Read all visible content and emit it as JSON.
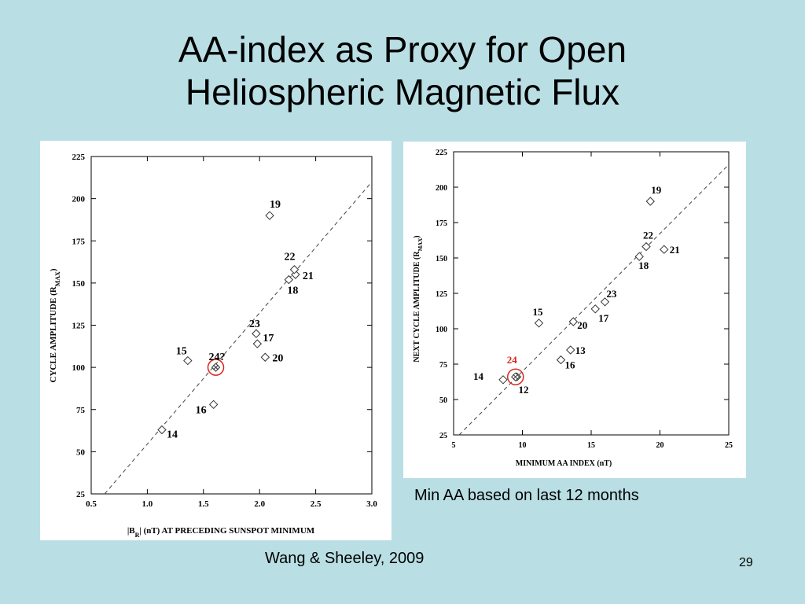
{
  "slide": {
    "title_line1": "AA-index as Proxy for Open",
    "title_line2": "Heliospheric Magnetic Flux",
    "right_caption": "Min AA based on last 12 months",
    "citation": "Wang & Sheeley, 2009",
    "slide_number": "29"
  },
  "colors": {
    "background": "#b9dfe5",
    "highlight": "#d9261c"
  },
  "chart_data": [
    {
      "type": "scatter",
      "xlabel_parts": [
        "|B",
        "R",
        "|  (nT)  AT  PRECEDING  SUNSPOT  MINIMUM"
      ],
      "ylabel_parts": [
        "CYCLE  AMPLITUDE  (R",
        "MAX",
        ")"
      ],
      "xlim": [
        0.5,
        3.0
      ],
      "ylim": [
        25,
        225
      ],
      "xticks": [
        "0.5",
        "1.0",
        "1.5",
        "2.0",
        "2.5",
        "3.0"
      ],
      "xtick_values": [
        0.5,
        1.0,
        1.5,
        2.0,
        2.5,
        3.0
      ],
      "yticks": [
        "25",
        "50",
        "75",
        "100",
        "125",
        "150",
        "175",
        "200",
        "225"
      ],
      "ytick_values": [
        25,
        50,
        75,
        100,
        125,
        150,
        175,
        200,
        225
      ],
      "fit_line": [
        [
          0.62,
          25
        ],
        [
          3.0,
          210
        ]
      ],
      "points": [
        {
          "label": "14",
          "x": 1.13,
          "y": 63
        },
        {
          "label": "15",
          "x": 1.36,
          "y": 104
        },
        {
          "label": "16",
          "x": 1.59,
          "y": 78
        },
        {
          "label": "17",
          "x": 1.98,
          "y": 114
        },
        {
          "label": "18",
          "x": 2.26,
          "y": 152
        },
        {
          "label": "19",
          "x": 2.09,
          "y": 190
        },
        {
          "label": "20",
          "x": 2.05,
          "y": 106
        },
        {
          "label": "21",
          "x": 2.32,
          "y": 155
        },
        {
          "label": "22",
          "x": 2.31,
          "y": 158
        },
        {
          "label": "23",
          "x": 1.97,
          "y": 120
        },
        {
          "label": "24?",
          "x": 1.61,
          "y": 100,
          "highlight": true
        }
      ]
    },
    {
      "type": "scatter",
      "xlabel": "MINIMUM   AA   INDEX   (nT)",
      "ylabel_parts": [
        "NEXT  CYCLE  AMPLITUDE  (R",
        "MAX",
        ")"
      ],
      "xlim": [
        5,
        25
      ],
      "ylim": [
        25,
        225
      ],
      "xticks": [
        "5",
        "10",
        "15",
        "20",
        "25"
      ],
      "xtick_values": [
        5,
        10,
        15,
        20,
        25
      ],
      "yticks": [
        "25",
        "50",
        "75",
        "100",
        "125",
        "150",
        "175",
        "200",
        "225"
      ],
      "ytick_values": [
        25,
        50,
        75,
        100,
        125,
        150,
        175,
        200,
        225
      ],
      "fit_line": [
        [
          5.4,
          25
        ],
        [
          24.9,
          215
        ]
      ],
      "points": [
        {
          "label": "12",
          "x": 9.6,
          "y": 66
        },
        {
          "label": "13",
          "x": 13.5,
          "y": 85
        },
        {
          "label": "14",
          "x": 8.6,
          "y": 64
        },
        {
          "label": "15",
          "x": 11.2,
          "y": 104
        },
        {
          "label": "16",
          "x": 12.8,
          "y": 78
        },
        {
          "label": "17",
          "x": 15.3,
          "y": 114
        },
        {
          "label": "18",
          "x": 18.5,
          "y": 151
        },
        {
          "label": "19",
          "x": 19.3,
          "y": 190
        },
        {
          "label": "20",
          "x": 13.7,
          "y": 105
        },
        {
          "label": "21",
          "x": 20.3,
          "y": 156
        },
        {
          "label": "22",
          "x": 19.0,
          "y": 158
        },
        {
          "label": "23",
          "x": 16.0,
          "y": 119
        },
        {
          "label": "24",
          "x": 9.5,
          "y": 66,
          "highlight": true
        }
      ]
    }
  ]
}
